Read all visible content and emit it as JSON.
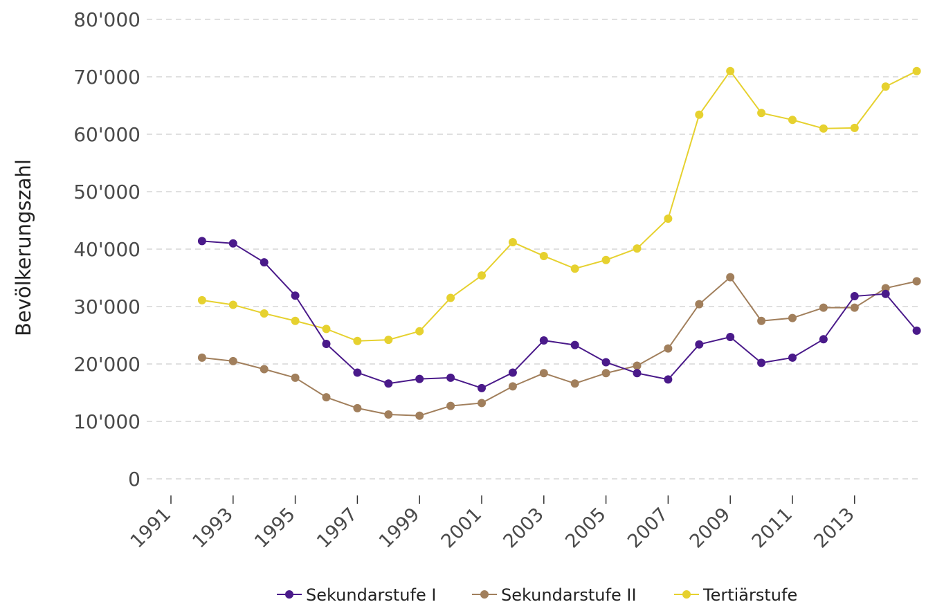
{
  "chart_data": {
    "type": "line",
    "ylabel": "Bevölkerungszahl",
    "xlabel": "",
    "ylim": [
      0,
      80000
    ],
    "y_ticks": [
      {
        "value": 0,
        "label": "0"
      },
      {
        "value": 10000,
        "label": "10'000"
      },
      {
        "value": 20000,
        "label": "20'000"
      },
      {
        "value": 30000,
        "label": "30'000"
      },
      {
        "value": 40000,
        "label": "40'000"
      },
      {
        "value": 50000,
        "label": "50'000"
      },
      {
        "value": 60000,
        "label": "60'000"
      },
      {
        "value": 70000,
        "label": "70'000"
      },
      {
        "value": 80000,
        "label": "80'000"
      }
    ],
    "x_ticks": [
      "1991",
      "1993",
      "1995",
      "1997",
      "1999",
      "2001",
      "2003",
      "2005",
      "2007",
      "2009",
      "2011",
      "2013"
    ],
    "x": [
      1992,
      1993,
      1994,
      1995,
      1996,
      1997,
      1998,
      1999,
      2000,
      2001,
      2002,
      2003,
      2004,
      2005,
      2006,
      2007,
      2008,
      2009,
      2010,
      2011,
      2012,
      2013,
      2014,
      2015
    ],
    "grid": "horizontal",
    "legend_position": "bottom",
    "series": [
      {
        "name": "Sekundarstufe I",
        "color": "#4a1a8a",
        "values": [
          41400,
          41000,
          37700,
          31900,
          23500,
          18500,
          16600,
          17400,
          17600,
          15800,
          18500,
          24100,
          23300,
          20300,
          18400,
          17300,
          23400,
          24700,
          20200,
          21100,
          24300,
          31800,
          32200,
          25800
        ]
      },
      {
        "name": "Sekundarstufe II",
        "color": "#a17f5c",
        "values": [
          21100,
          20500,
          19100,
          17600,
          14200,
          12300,
          11200,
          11000,
          12700,
          13200,
          16100,
          18400,
          16600,
          18400,
          19700,
          22700,
          30400,
          35100,
          27500,
          28000,
          29800,
          29800,
          33200,
          34400
        ]
      },
      {
        "name": "Tertiärstufe",
        "color": "#e6d12f",
        "values": [
          31100,
          30300,
          28800,
          27500,
          26100,
          24000,
          24200,
          25700,
          31500,
          35400,
          41200,
          38800,
          36600,
          38100,
          40100,
          45300,
          63400,
          71000,
          63700,
          62500,
          61000,
          61100,
          68300,
          71000
        ]
      }
    ]
  }
}
